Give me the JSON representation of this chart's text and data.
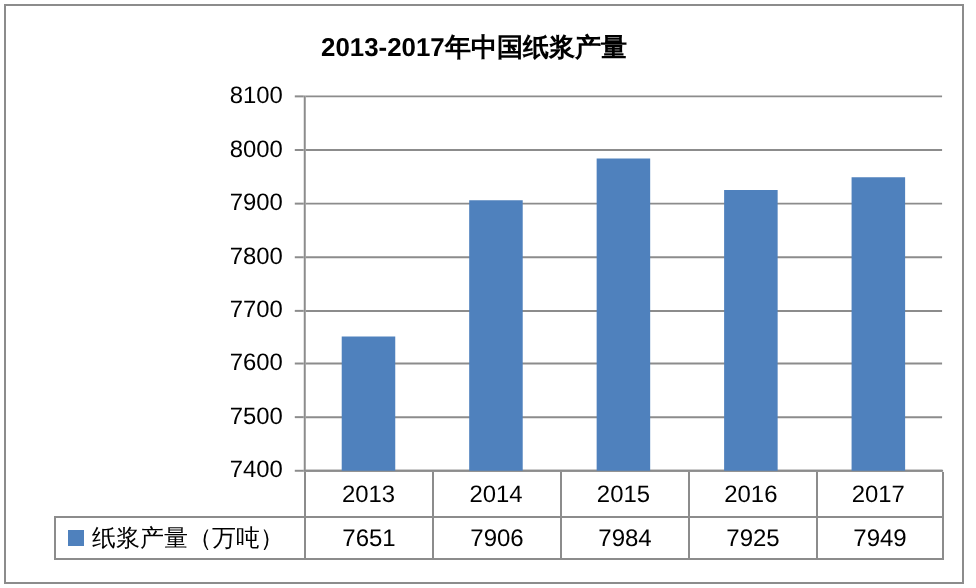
{
  "chart_data": {
    "type": "bar",
    "title": "2013-2017年中国纸浆产量",
    "categories": [
      "2013",
      "2014",
      "2015",
      "2016",
      "2017"
    ],
    "series": [
      {
        "name": "纸浆产量（万吨）",
        "color": "#4f81bd",
        "values": [
          7651,
          7906,
          7984,
          7925,
          7949
        ]
      }
    ],
    "ylim": [
      7400,
      8100
    ],
    "yticks": [
      7400,
      7500,
      7600,
      7700,
      7800,
      7900,
      8000,
      8100
    ],
    "grid": "y",
    "legend": "bottom",
    "data_labels": true
  }
}
